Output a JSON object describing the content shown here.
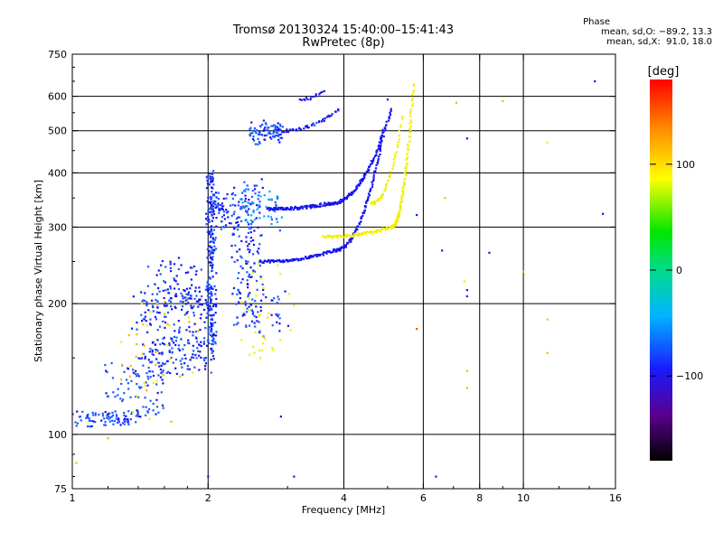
{
  "chart_data": {
    "type": "scatter",
    "title": "Tromsø 20130324 15:40:00–15:41:43",
    "subtitle": "RwPretec (8p)",
    "xlabel": "Frequency [MHz]",
    "ylabel": "Stationary phase Virtual Height [km]",
    "xscale": "log",
    "yscale": "log",
    "xlim": [
      1,
      16
    ],
    "ylim": [
      75,
      750
    ],
    "xticks": [
      1,
      2,
      4,
      6,
      8,
      10,
      16
    ],
    "xtick_labels": [
      "1",
      "2",
      "4",
      "6",
      "8",
      "10",
      "16"
    ],
    "yticks": [
      75,
      100,
      200,
      300,
      400,
      500,
      600,
      750
    ],
    "ytick_labels": [
      "75",
      "100",
      "200",
      "300",
      "400",
      "500",
      "600",
      "750"
    ],
    "grid": true,
    "stats": {
      "heading": "Phase",
      "o_line": "mean, sd,O: −89.2, 13.3",
      "x_line": "mean, sd,X:  91.0, 18.0"
    },
    "colorbar": {
      "label": "[deg]",
      "range": [
        -180,
        180
      ],
      "ticks": [
        100,
        0,
        -100
      ],
      "tick_labels": [
        "100",
        "0",
        "−100"
      ]
    },
    "series": [
      {
        "trace": [
          {
            "x_from": 1.0,
            "x_to": 1.4,
            "y_from": 105,
            "y_to": 112,
            "phase": -95,
            "n": 80,
            "spread": 0.03
          },
          {
            "x_from": 1.2,
            "x_to": 1.6,
            "y_from": 110,
            "y_to": 145,
            "phase": -95,
            "n": 80,
            "spread": 0.05
          },
          {
            "x_from": 1.4,
            "x_to": 2.0,
            "y_from": 140,
            "y_to": 220,
            "phase": -100,
            "n": 260,
            "spread": 0.08
          },
          {
            "x_from": 1.5,
            "x_to": 1.9,
            "y_from": 200,
            "y_to": 250,
            "phase": -105,
            "n": 60,
            "spread": 0.07
          },
          {
            "x_from": 2.0,
            "x_to": 2.06,
            "y_from": 150,
            "y_to": 400,
            "phase": -100,
            "n": 220,
            "spread": 0.03
          },
          {
            "x_from": 2.05,
            "x_to": 2.3,
            "y_from": 300,
            "y_to": 360,
            "phase": -100,
            "n": 70,
            "spread": 0.05
          },
          {
            "x_from": 2.3,
            "x_to": 2.6,
            "y_from": 180,
            "y_to": 380,
            "phase": -100,
            "n": 150,
            "spread": 0.06
          },
          {
            "x_from": 2.45,
            "x_to": 2.9,
            "y_from": 470,
            "y_to": 520,
            "phase": -95,
            "n": 80,
            "spread": 0.03
          },
          {
            "x_from": 2.5,
            "x_to": 3.0,
            "y_from": 170,
            "y_to": 220,
            "phase": -105,
            "n": 35,
            "spread": 0.03
          },
          {
            "x_from": 2.4,
            "x_to": 2.9,
            "y_from": 300,
            "y_to": 360,
            "phase": -75,
            "n": 50,
            "spread": 0.05
          },
          {
            "x_from": 2.4,
            "x_to": 3.0,
            "y_from": 150,
            "y_to": 240,
            "phase": 90,
            "n": 30,
            "spread": 0.08
          },
          {
            "x_from": 1.3,
            "x_to": 1.9,
            "y_from": 110,
            "y_to": 200,
            "phase": 110,
            "n": 40,
            "spread": 0.1
          }
        ],
        "curves": [
          {
            "x_from": 2.7,
            "x_to": 3.7,
            "y_from": 330,
            "y_to": 340,
            "phase": -115,
            "n": 90
          },
          {
            "x_from": 3.7,
            "x_to": 5.1,
            "y_from": 340,
            "y_to": 560,
            "phase": -110,
            "n": 120
          },
          {
            "x_from": 2.6,
            "x_to": 3.8,
            "y_from": 250,
            "y_to": 265,
            "phase": -110,
            "n": 90
          },
          {
            "x_from": 3.8,
            "x_to": 4.9,
            "y_from": 265,
            "y_to": 500,
            "phase": -110,
            "n": 110
          },
          {
            "x_from": 2.9,
            "x_to": 3.9,
            "y_from": 500,
            "y_to": 560,
            "phase": -105,
            "n": 40
          },
          {
            "x_from": 3.2,
            "x_to": 3.6,
            "y_from": 590,
            "y_to": 620,
            "phase": -105,
            "n": 15
          },
          {
            "x_from": 3.6,
            "x_to": 5.1,
            "y_from": 285,
            "y_to": 300,
            "phase": 95,
            "n": 70
          },
          {
            "x_from": 5.1,
            "x_to": 5.7,
            "y_from": 300,
            "y_to": 640,
            "phase": 95,
            "n": 110
          },
          {
            "x_from": 4.6,
            "x_to": 5.4,
            "y_from": 340,
            "y_to": 540,
            "phase": 90,
            "n": 50
          }
        ],
        "sparse": [
          {
            "x": 1.02,
            "y": 86,
            "phase": 120
          },
          {
            "x": 1.2,
            "y": 98,
            "phase": 130
          },
          {
            "x": 2.0,
            "y": 80,
            "phase": -110
          },
          {
            "x": 2.9,
            "y": 110,
            "phase": -110
          },
          {
            "x": 3.1,
            "y": 80,
            "phase": -120
          },
          {
            "x": 3.1,
            "y": 198,
            "phase": 90
          },
          {
            "x": 5.0,
            "y": 590,
            "phase": -105
          },
          {
            "x": 5.8,
            "y": 320,
            "phase": -100
          },
          {
            "x": 6.6,
            "y": 265,
            "phase": -110
          },
          {
            "x": 6.7,
            "y": 350,
            "phase": 130
          },
          {
            "x": 7.1,
            "y": 580,
            "phase": 130
          },
          {
            "x": 7.5,
            "y": 480,
            "phase": -120
          },
          {
            "x": 7.4,
            "y": 225,
            "phase": 100
          },
          {
            "x": 7.5,
            "y": 215,
            "phase": -110
          },
          {
            "x": 7.5,
            "y": 208,
            "phase": -105
          },
          {
            "x": 7.5,
            "y": 140,
            "phase": 120
          },
          {
            "x": 7.5,
            "y": 128,
            "phase": 120
          },
          {
            "x": 8.4,
            "y": 262,
            "phase": -110
          },
          {
            "x": 9.0,
            "y": 585,
            "phase": 130
          },
          {
            "x": 10.0,
            "y": 237,
            "phase": 130
          },
          {
            "x": 11.3,
            "y": 470,
            "phase": 110
          },
          {
            "x": 11.3,
            "y": 184,
            "phase": 140
          },
          {
            "x": 11.3,
            "y": 154,
            "phase": 140
          },
          {
            "x": 14.4,
            "y": 650,
            "phase": -110
          },
          {
            "x": 15.0,
            "y": 322,
            "phase": -110
          },
          {
            "x": 6.4,
            "y": 80,
            "phase": -110
          },
          {
            "x": 5.8,
            "y": 175,
            "phase": 150
          }
        ]
      }
    ]
  }
}
